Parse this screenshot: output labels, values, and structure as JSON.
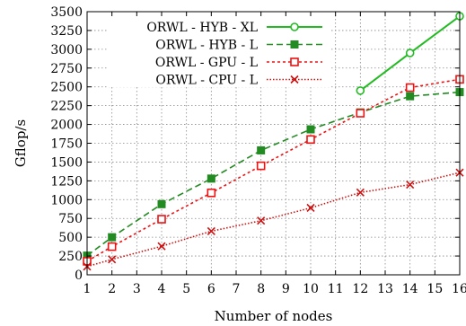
{
  "chart_data": {
    "type": "line",
    "xlabel": "Number of nodes",
    "ylabel": "Gflop/s",
    "xlim": [
      1,
      16
    ],
    "ylim": [
      0,
      3500
    ],
    "xticks": [
      1,
      2,
      3,
      4,
      5,
      6,
      7,
      8,
      9,
      10,
      11,
      12,
      13,
      14,
      15,
      16
    ],
    "yticks": [
      0,
      250,
      500,
      750,
      1000,
      1250,
      1500,
      1750,
      2000,
      2250,
      2500,
      2750,
      3000,
      3250,
      3500
    ],
    "grid": true,
    "legend_position": "top-left",
    "series": [
      {
        "name": "ORWL - HYB - XL",
        "color": "#22bb22",
        "line": "solid",
        "marker": "open-circle",
        "x": [
          12,
          14,
          16
        ],
        "y": [
          2450,
          2950,
          3440
        ]
      },
      {
        "name": "ORWL - HYB - L",
        "color": "#228B22",
        "line": "dashed",
        "marker": "filled-square",
        "x": [
          1,
          2,
          4,
          6,
          8,
          10,
          12,
          14,
          16
        ],
        "y": [
          255,
          500,
          940,
          1280,
          1655,
          1935,
          2160,
          2375,
          2430
        ]
      },
      {
        "name": "ORWL - GPU - L",
        "color": "#ee1111",
        "line": "dotted",
        "marker": "open-square",
        "x": [
          1,
          2,
          4,
          6,
          8,
          10,
          12,
          14,
          16
        ],
        "y": [
          180,
          375,
          740,
          1090,
          1450,
          1800,
          2150,
          2490,
          2600
        ]
      },
      {
        "name": "ORWL - CPU - L",
        "color": "#cc1111",
        "line": "fine-dotted",
        "marker": "cross",
        "x": [
          1,
          2,
          4,
          6,
          8,
          10,
          12,
          14,
          16
        ],
        "y": [
          110,
          205,
          380,
          580,
          720,
          890,
          1095,
          1200,
          1360
        ]
      }
    ]
  }
}
